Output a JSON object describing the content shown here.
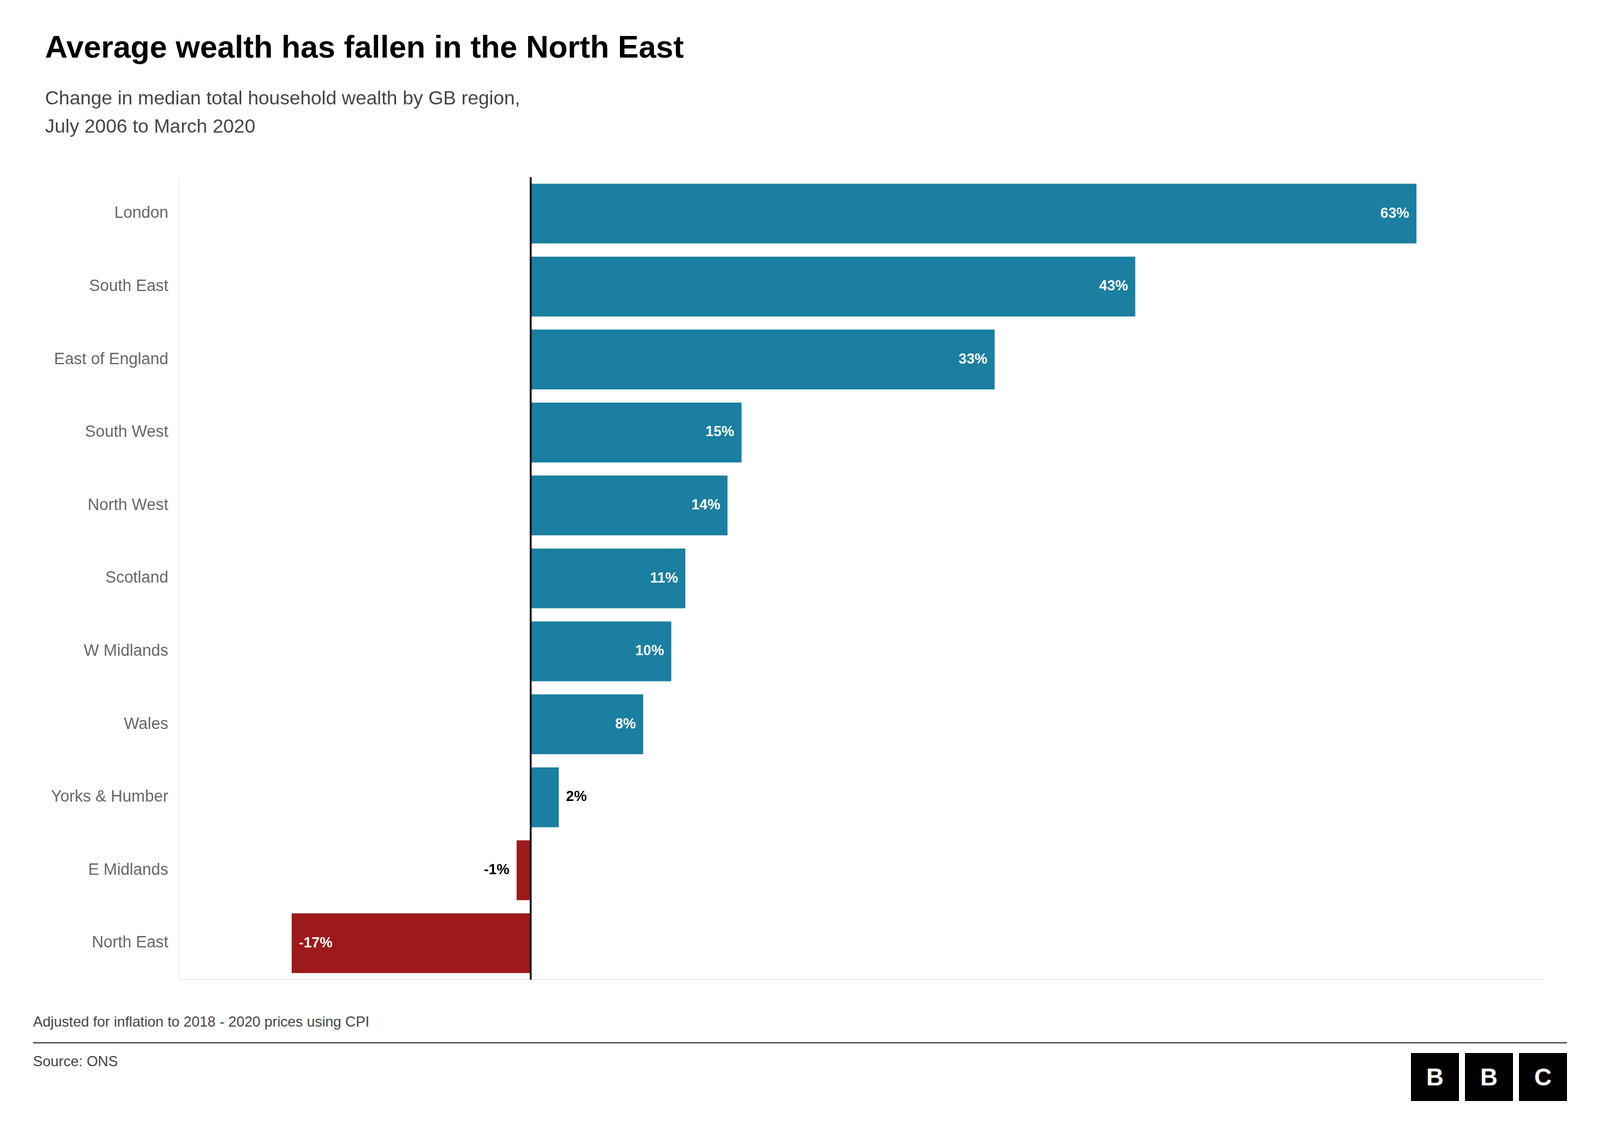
{
  "chart_data": {
    "type": "bar",
    "orientation": "horizontal",
    "title": "Average wealth has fallen in the North East",
    "subtitle": "Change in median total household wealth by GB region,\nJuly 2006 to March 2020",
    "footnote": "Adjusted for inflation to 2018 - 2020 prices using CPI",
    "source": "Source: ONS",
    "annotations": [
      "BBC"
    ],
    "categories": [
      "London",
      "South East",
      "East of England",
      "South West",
      "North West",
      "Scotland",
      "W Midlands",
      "Wales",
      "Yorks & Humber",
      "E Midlands",
      "North East"
    ],
    "values": [
      63,
      43,
      33,
      15,
      14,
      11,
      10,
      8,
      2,
      -1,
      -17
    ],
    "value_labels": [
      "63%",
      "43%",
      "33%",
      "15%",
      "14%",
      "11%",
      "10%",
      "8%",
      "2%",
      "-1%",
      "-17%"
    ],
    "colors": [
      "#1a7fa0",
      "#1a7fa0",
      "#1a7fa0",
      "#1a7fa0",
      "#1a7fa0",
      "#1a7fa0",
      "#1a7fa0",
      "#1a7fa0",
      "#1a7fa0",
      "#9e1a1a",
      "#9e1a1a"
    ],
    "xlim": [
      -25,
      72
    ],
    "xticks": [],
    "grid": false,
    "data_labels": true,
    "tick_labels": "y"
  }
}
